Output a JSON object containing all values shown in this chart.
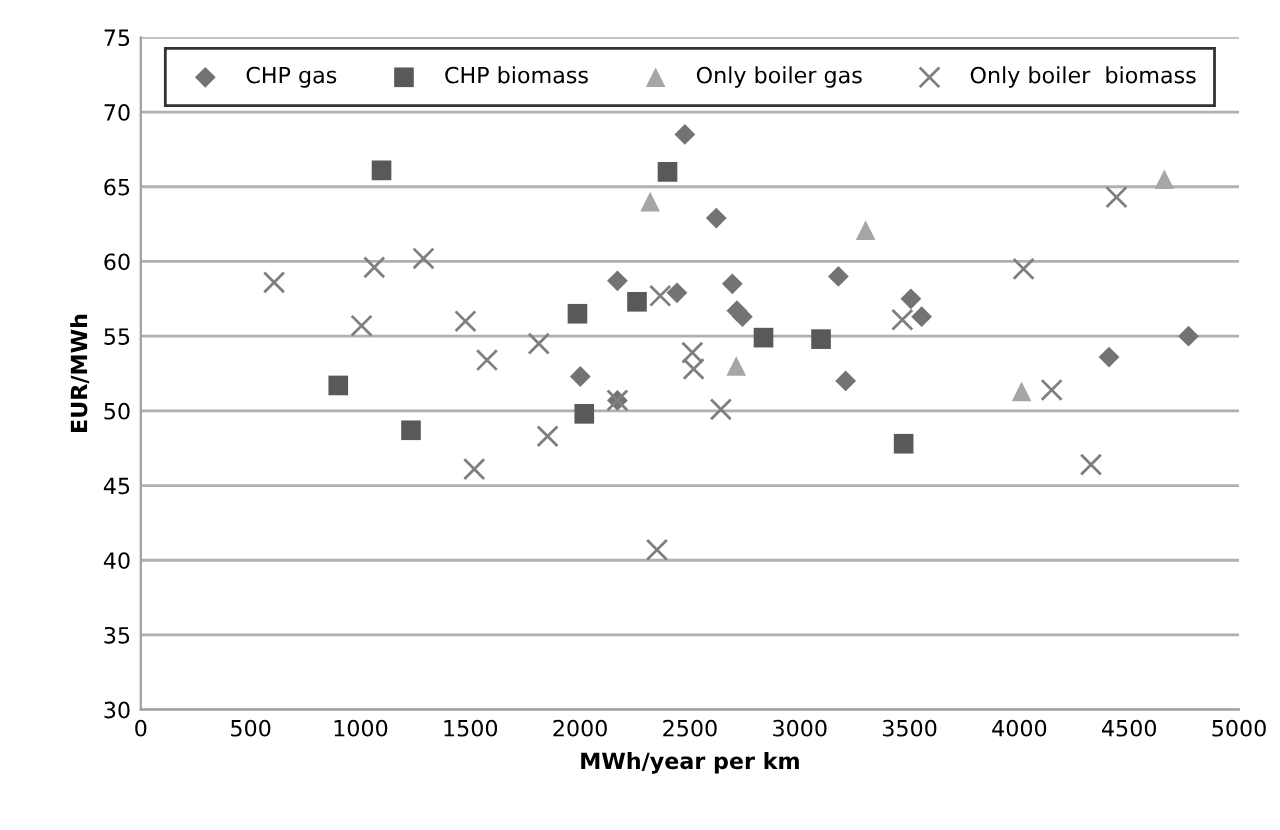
{
  "chart_data": {
    "type": "scatter",
    "xlabel": "MWh/year per km",
    "ylabel": "EUR/MWh",
    "xlim": [
      0,
      5000
    ],
    "xticks": [
      0,
      500,
      1000,
      1500,
      2000,
      2500,
      3000,
      3500,
      4000,
      4500,
      5000
    ],
    "ylim": [
      30,
      75
    ],
    "yticks": [
      30,
      35,
      40,
      45,
      50,
      55,
      60,
      65,
      70,
      75
    ],
    "grid": "y",
    "legend": "top",
    "series": [
      {
        "name": "CHP gas",
        "color": "#737373",
        "marker": "diamond",
        "x": [
          2170,
          2001,
          2170,
          2441,
          2477,
          2620,
          2693,
          2714,
          2739,
          3176,
          3209,
          3506,
          3555,
          4408,
          4770
        ],
        "values": [
          58.7,
          52.3,
          50.7,
          57.9,
          68.5,
          62.9,
          58.5,
          56.7,
          56.3,
          59.0,
          52.0,
          57.5,
          56.3,
          53.6,
          55.0
        ]
      },
      {
        "name": "CHP biomass",
        "color": "#595959",
        "marker": "square",
        "x": [
          1096,
          2398,
          1988,
          2259,
          899,
          1230,
          2019,
          2835,
          3097,
          3473
        ],
        "values": [
          66.1,
          66.0,
          56.5,
          57.3,
          51.7,
          48.7,
          49.8,
          54.9,
          54.8,
          47.8
        ]
      },
      {
        "name": "Only boiler gas",
        "color": "#a6a6a6",
        "marker": "triangle",
        "x": [
          2319,
          3300,
          2711,
          4010,
          4660
        ],
        "values": [
          64.0,
          62.1,
          53.0,
          51.3,
          65.5
        ]
      },
      {
        "name": "Only boiler  biomass",
        "color": "#7f7f7f",
        "marker": "cross",
        "x": [
          607,
          1063,
          1287,
          1005,
          1478,
          1576,
          1812,
          1518,
          1852,
          2365,
          2511,
          2517,
          2350,
          2641,
          3467,
          4019,
          4147,
          4326,
          4442,
          2170
        ],
        "values": [
          58.6,
          59.6,
          60.2,
          55.7,
          56.0,
          53.4,
          54.5,
          46.1,
          48.3,
          57.7,
          53.9,
          52.8,
          40.7,
          50.1,
          56.1,
          59.5,
          51.4,
          46.4,
          64.3,
          50.7
        ]
      }
    ]
  }
}
